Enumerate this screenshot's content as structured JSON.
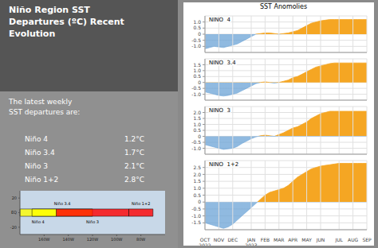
{
  "title": "Niño Region SST\nDepartures (ºC) Recent\nEvolution",
  "subtitle": "The latest weekly\nSST departures are:",
  "table": {
    "categories": [
      "Niño 4",
      "Niño 3.4",
      "Niño 3",
      "Niño 1+2"
    ],
    "value_labels": [
      "1.2°C",
      "1.7°C",
      "2.1°C",
      "2.8°C"
    ]
  },
  "map": {
    "type": "map",
    "xlim": [
      -180,
      -60
    ],
    "ylim": [
      -30,
      30
    ],
    "xticks": [
      {
        "value": -160,
        "label": "160W"
      },
      {
        "value": -140,
        "label": "140W"
      },
      {
        "value": -120,
        "label": "120W"
      },
      {
        "value": -100,
        "label": "100W"
      },
      {
        "value": -80,
        "label": "80W"
      }
    ],
    "yticks": [
      -20,
      {
        "value": 0,
        "label": "EQ"
      },
      20
    ],
    "areas": [
      {
        "name": "Niño 4",
        "x": [
          -180,
          -150
        ],
        "y": [
          -5,
          5
        ],
        "color": "yellow"
      },
      {
        "name": "Niño 3.4",
        "x": [
          -170,
          -120
        ],
        "y": [
          -5,
          5
        ],
        "color": "yellow"
      },
      {
        "name": "Niño 3",
        "x": [
          -150,
          -90
        ],
        "y": [
          -5,
          5
        ],
        "color": "red"
      },
      {
        "name": "Niño 1+2",
        "x": [
          -90,
          -70
        ],
        "y": [
          -5,
          5
        ],
        "color": "red"
      }
    ]
  },
  "chart_title": "SST Anomolies",
  "chart_data": [
    {
      "type": "area",
      "annotation": "NINO  4",
      "categories": [
        "OCT\n2022",
        null,
        null,
        "NOV",
        null,
        null,
        "DEC",
        null,
        null,
        null,
        "JAN\n2023",
        null,
        null,
        "FEB",
        null,
        null,
        "MAR",
        null,
        null,
        "APR",
        null,
        null,
        "MAY",
        null,
        null,
        "JUN",
        null,
        null,
        null,
        "JUL",
        null,
        null,
        "AUG",
        null,
        null,
        "SEP"
      ],
      "series": [
        {
          "values": [
            -1.2,
            -1.1,
            -1.0,
            -1.05,
            -1.1,
            -1.0,
            -0.9,
            -0.8,
            -0.6,
            -0.4,
            -0.2,
            0.0,
            0.05,
            0.1,
            0.1,
            0.05,
            0.0,
            0.05,
            0.1,
            0.2,
            0.3,
            0.5,
            0.7,
            0.9,
            1.0,
            1.1,
            1.15,
            1.2,
            1.2,
            1.2,
            1.2,
            1.2,
            1.2,
            1.2,
            1.2,
            1.2
          ],
          "color": "#f5a623",
          "negative_color": "#6ba3d6"
        }
      ],
      "ylim": [
        -1.5,
        1.5
      ],
      "yticks": [
        {
          "value": -1.0,
          "label": "-1.0"
        },
        -0.5,
        0,
        0.5,
        {
          "value": 1.0,
          "label": "1.0"
        }
      ],
      "grid": true,
      "tick_labels": "y"
    },
    {
      "type": "area",
      "annotation": "NINO  3.4",
      "categories": [
        "OCT\n2022",
        null,
        null,
        "NOV",
        null,
        null,
        "DEC",
        null,
        null,
        null,
        "JAN\n2023",
        null,
        null,
        "FEB",
        null,
        null,
        "MAR",
        null,
        null,
        "APR",
        null,
        null,
        "MAY",
        null,
        null,
        "JUN",
        null,
        null,
        null,
        "JUL",
        null,
        null,
        "AUG",
        null,
        null,
        "SEP"
      ],
      "series": [
        {
          "values": [
            -0.8,
            -0.9,
            -1.0,
            -1.1,
            -1.15,
            -1.1,
            -1.0,
            -0.9,
            -0.7,
            -0.5,
            -0.3,
            -0.1,
            0.0,
            0.05,
            0.0,
            -0.05,
            0.0,
            0.1,
            0.2,
            0.4,
            0.5,
            0.7,
            0.9,
            1.1,
            1.3,
            1.4,
            1.5,
            1.6,
            1.65,
            1.65,
            1.65,
            1.65,
            1.65,
            1.65,
            1.65,
            1.65
          ],
          "color": "#f5a623",
          "negative_color": "#6ba3d6"
        }
      ],
      "ylim": [
        -1.5,
        2.0
      ],
      "yticks": [
        {
          "value": -1.0,
          "label": "-1.0"
        },
        -0.5,
        0,
        0.5,
        {
          "value": 1.0,
          "label": "1.0"
        },
        1.5
      ],
      "grid": true,
      "tick_labels": "y"
    },
    {
      "type": "area",
      "annotation": "NINO  3",
      "categories": [
        "OCT\n2022",
        null,
        null,
        "NOV",
        null,
        null,
        "DEC",
        null,
        null,
        null,
        "JAN\n2023",
        null,
        null,
        "FEB",
        null,
        null,
        "MAR",
        null,
        null,
        "APR",
        null,
        null,
        "MAY",
        null,
        null,
        "JUN",
        null,
        null,
        null,
        "JUL",
        null,
        null,
        "AUG",
        null,
        null,
        "SEP"
      ],
      "series": [
        {
          "values": [
            -0.7,
            -0.8,
            -0.9,
            -1.0,
            -1.1,
            -1.05,
            -1.0,
            -0.85,
            -0.6,
            -0.4,
            -0.2,
            -0.05,
            0.05,
            0.1,
            0.05,
            0.0,
            0.15,
            0.3,
            0.5,
            0.7,
            0.8,
            1.0,
            1.2,
            1.5,
            1.7,
            1.9,
            2.0,
            2.1,
            2.1,
            2.1,
            2.1,
            2.1,
            2.1,
            2.1,
            2.1,
            2.1
          ],
          "color": "#f5a623",
          "negative_color": "#6ba3d6"
        }
      ],
      "ylim": [
        -1.5,
        2.5
      ],
      "yticks": [
        {
          "value": -1.0,
          "label": "-1.0"
        },
        -0.5,
        0,
        0.5,
        {
          "value": 1.0,
          "label": "1.0"
        },
        1.5,
        {
          "value": 2.0,
          "label": "2.0"
        }
      ],
      "grid": true,
      "tick_labels": "y"
    },
    {
      "type": "area",
      "annotation": "NINO  1+2",
      "categories": [
        "OCT\n2022",
        null,
        null,
        "NOV",
        null,
        null,
        "DEC",
        null,
        null,
        null,
        "JAN\n2023",
        null,
        null,
        "FEB",
        null,
        null,
        "MAR",
        null,
        null,
        "APR",
        null,
        null,
        "MAY",
        null,
        null,
        "JUN",
        null,
        null,
        null,
        "JUL",
        null,
        null,
        "AUG",
        null,
        null,
        "SEP"
      ],
      "series": [
        {
          "values": [
            -1.5,
            -1.6,
            -1.7,
            -1.8,
            -1.9,
            -1.8,
            -1.6,
            -1.3,
            -1.0,
            -0.7,
            -0.4,
            -0.1,
            0.2,
            0.5,
            0.7,
            0.8,
            0.9,
            1.0,
            1.2,
            1.5,
            1.8,
            2.0,
            2.2,
            2.4,
            2.5,
            2.6,
            2.65,
            2.7,
            2.75,
            2.8,
            2.8,
            2.8,
            2.8,
            2.8,
            2.8,
            2.8
          ],
          "color": "#f5a623",
          "negative_color": "#6ba3d6"
        }
      ],
      "ylim": [
        -2.0,
        3.0
      ],
      "yticks": [
        -1.5,
        {
          "value": -1.0,
          "label": "-1.0"
        },
        -0.5,
        0,
        0.5,
        {
          "value": 1.0,
          "label": "1.0"
        },
        1.5,
        {
          "value": 2.0,
          "label": "2.0"
        },
        2.5
      ],
      "grid": true
    }
  ]
}
